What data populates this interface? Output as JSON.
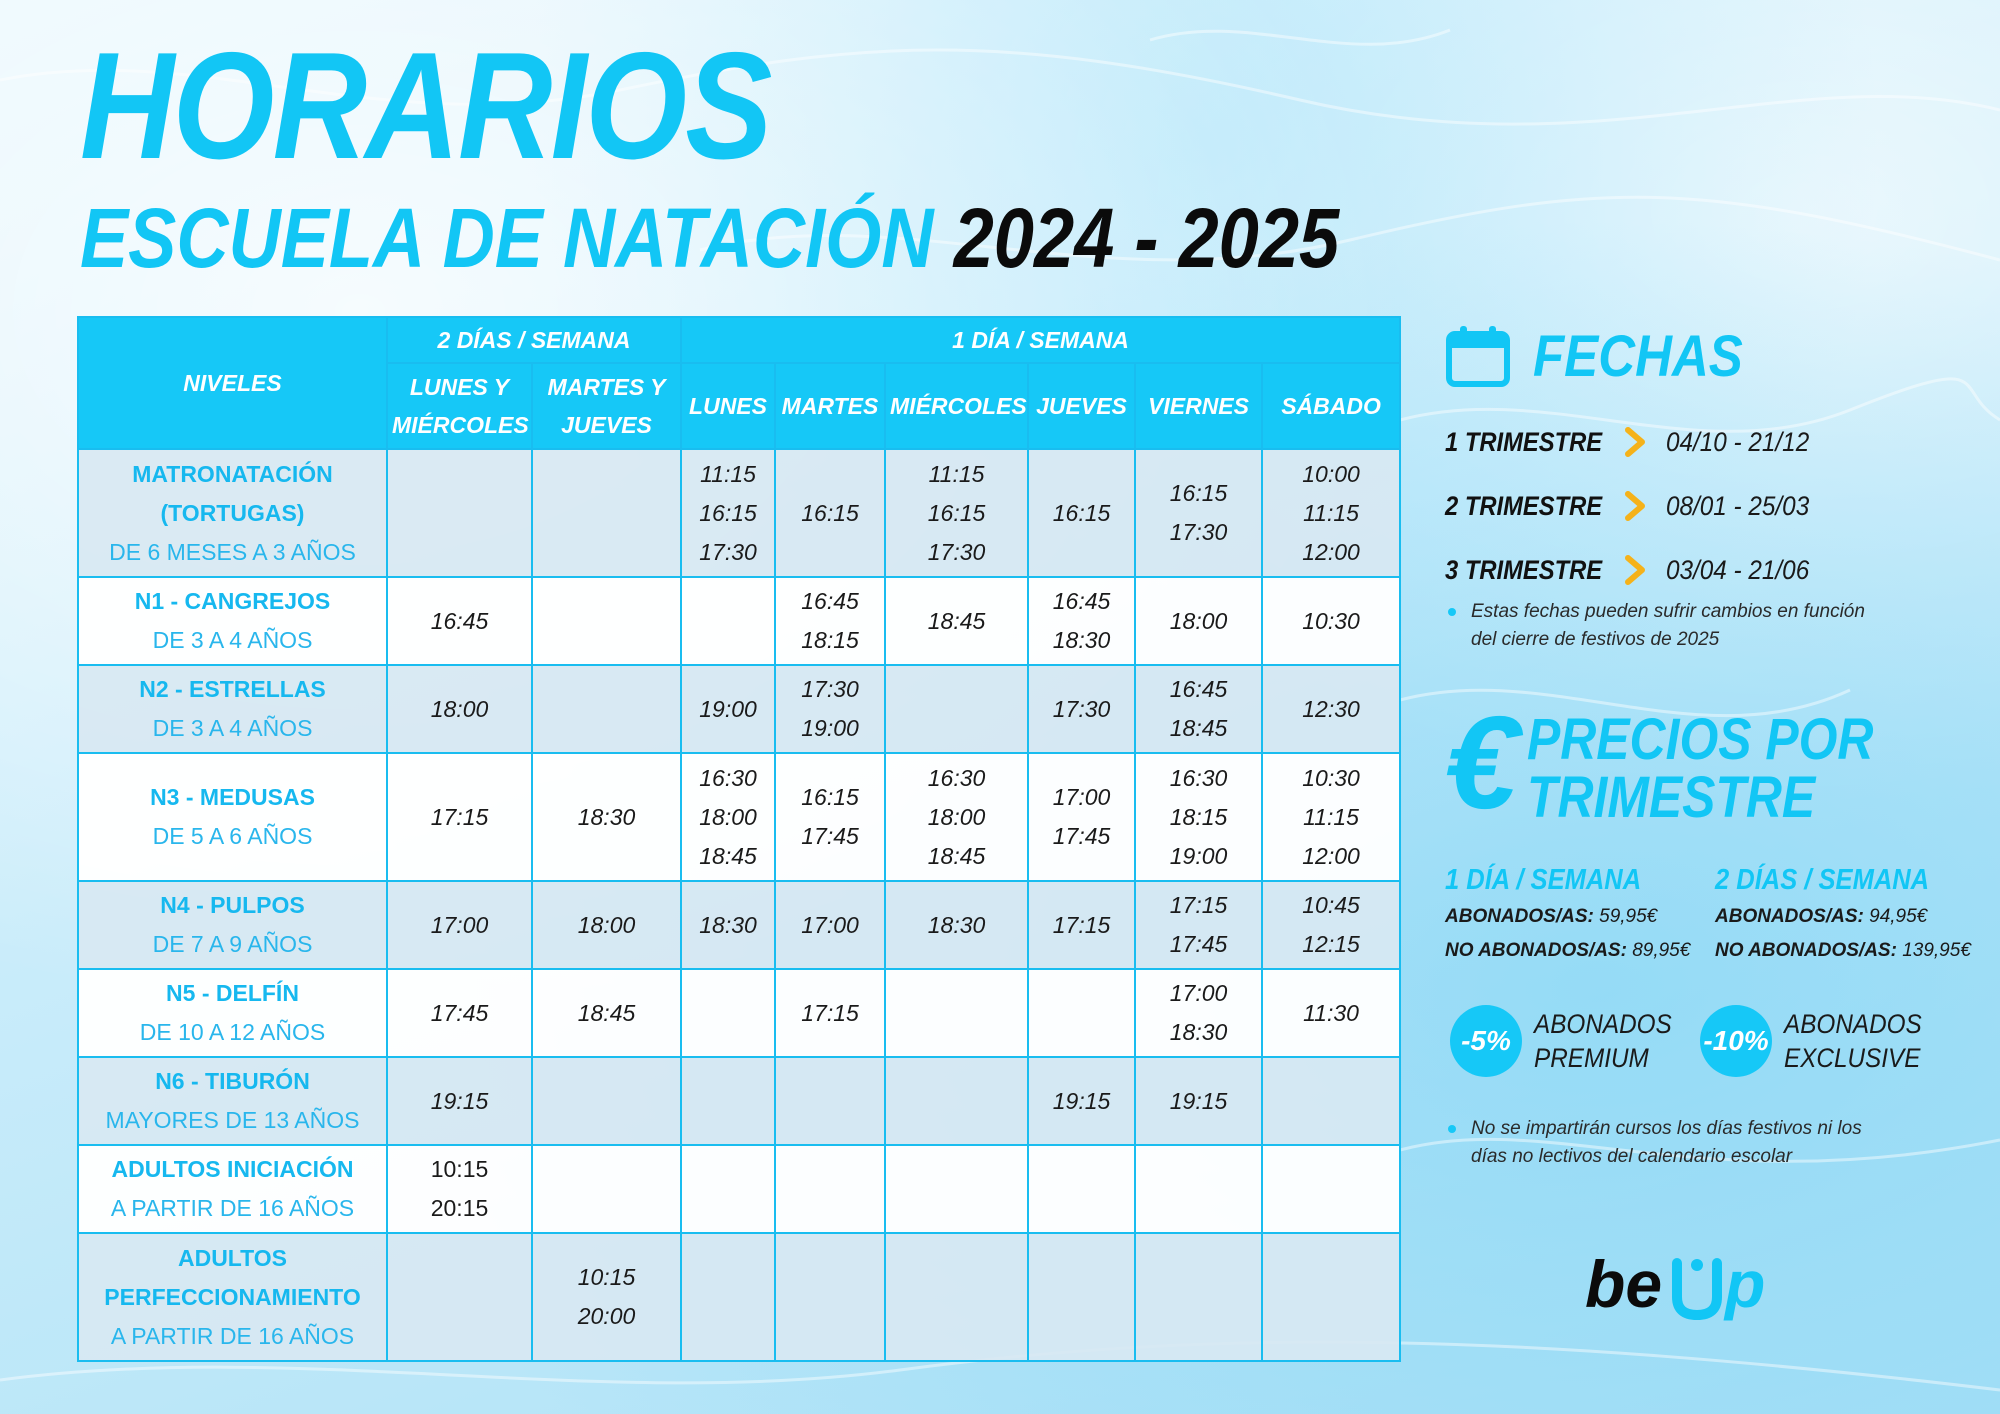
{
  "header": {
    "title": "HORARIOS",
    "subtitle": "ESCUELA DE NATACIÓN",
    "season": "2024 - 2025"
  },
  "table": {
    "header_levels": "NIVELES",
    "group_two_days": "2 DÍAS / SEMANA",
    "group_one_day": "1 DÍA / SEMANA",
    "two_day_cols": [
      "LUNES Y\nMIÉRCOLES",
      "MARTES Y\nJUEVES"
    ],
    "one_day_cols": [
      "LUNES",
      "MARTES",
      "MIÉRCOLES",
      "JUEVES",
      "VIERNES",
      "SÁBADO"
    ],
    "rows": [
      {
        "name": "MATRONATACIÓN\n(TORTUGAS)",
        "age": "DE 6 MESES A 3 AÑOS",
        "cells": [
          "",
          "",
          "11:15\n16:15\n17:30",
          "16:15",
          "11:15\n16:15\n17:30",
          "16:15",
          "16:15\n17:30",
          "10:00\n11:15\n12:00"
        ]
      },
      {
        "name": "N1 - CANGREJOS",
        "age": "DE 3 A 4 AÑOS",
        "cells": [
          "16:45",
          "",
          "",
          "16:45\n18:15",
          "18:45",
          "16:45\n18:30",
          "18:00",
          "10:30"
        ]
      },
      {
        "name": "N2 -  ESTRELLAS",
        "age": "DE 3 A 4 AÑOS",
        "cells": [
          "18:00",
          "",
          "19:00",
          "17:30\n19:00",
          "",
          "17:30",
          "16:45\n18:45",
          "12:30"
        ]
      },
      {
        "name": "N3 - MEDUSAS",
        "age": "DE 5 A 6 AÑOS",
        "cells": [
          "17:15",
          "18:30",
          "16:30\n18:00\n18:45",
          "16:15\n17:45",
          "16:30\n18:00\n18:45",
          "17:00\n17:45",
          "16:30\n18:15\n19:00",
          "10:30\n11:15\n12:00"
        ]
      },
      {
        "name": "N4 -  PULPOS",
        "age": "DE 7 A 9 AÑOS",
        "cells": [
          "17:00",
          "18:00",
          "18:30",
          "17:00",
          "18:30",
          "17:15",
          "17:15\n17:45",
          "10:45\n12:15"
        ]
      },
      {
        "name": "N5 - DELFÍN",
        "age": "DE 10 A 12 AÑOS",
        "cells": [
          "17:45",
          "18:45",
          "",
          "17:15",
          "",
          "",
          "17:00\n18:30",
          "11:30"
        ]
      },
      {
        "name": "N6 -  TIBURÓN",
        "age": "MAYORES DE 13 AÑOS",
        "cells": [
          "19:15",
          "",
          "",
          "",
          "",
          "19:15",
          "19:15",
          ""
        ]
      },
      {
        "name": "ADULTOS INICIACIÓN",
        "age": "A PARTIR DE 16 AÑOS",
        "cells": [
          "10:15\n20:15",
          "",
          "",
          "",
          "",
          "",
          "",
          ""
        ]
      },
      {
        "name": "ADULTOS\nPERFECCIONAMIENTO",
        "age": "A PARTIR DE 16 AÑOS",
        "cells": [
          "",
          "10:15\n20:00",
          "",
          "",
          "",
          "",
          "",
          ""
        ]
      }
    ]
  },
  "fechas": {
    "title": "FECHAS",
    "icon": "calendar-icon",
    "trimestres": [
      {
        "label": "1 TRIMESTRE",
        "range": "04/10 - 21/12"
      },
      {
        "label": "2 TRIMESTRE",
        "range": "08/01 - 25/03"
      },
      {
        "label": "3 TRIMESTRE",
        "range": "03/04 - 21/06"
      }
    ],
    "note": "Estas fechas pueden sufrir cambios en función del cierre de festivos de 2025"
  },
  "precios": {
    "symbol": "€",
    "title_line1": "PRECIOS POR",
    "title_line2": "TRIMESTRE",
    "one_day": {
      "heading": "1 DÍA / SEMANA",
      "abonados_label": "ABONADOS/AS:",
      "abonados_price": "59,95€",
      "no_abonados_label": "NO ABONADOS/AS:",
      "no_abonados_price": "89,95€"
    },
    "two_days": {
      "heading": "2 DÍAS / SEMANA",
      "abonados_label": "ABONADOS/AS:",
      "abonados_price": "94,95€",
      "no_abonados_label": "NO ABONADOS/AS:",
      "no_abonados_price": "139,95€"
    },
    "discounts": [
      {
        "value": "-5%",
        "label": "ABONADOS\nPREMIUM"
      },
      {
        "value": "-10%",
        "label": "ABONADOS\nEXCLUSIVE"
      }
    ],
    "note": "No se impartirán cursos los días festivos ni los días no lectivos del calendario escolar"
  },
  "brand": {
    "logo_text": "beUp",
    "accent": "#12c6f5",
    "dark": "#0b0b0b",
    "arrow": "#f5b21a"
  }
}
